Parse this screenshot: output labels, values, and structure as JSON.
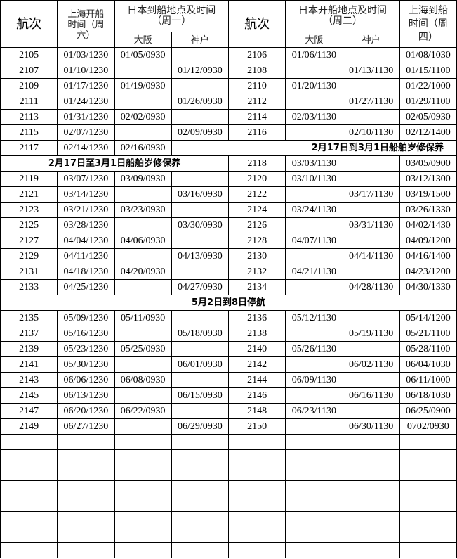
{
  "header": {
    "voyage": "航次",
    "sh_depart": "上海开船时间（周六）",
    "jp_arrive": "日本到船地点及时间（周一）",
    "jp_depart": "日本开船地点及时间（周二）",
    "sh_arrive": "上海到船时间（周四）",
    "osaka": "大阪",
    "kobe": "神户"
  },
  "rows": [
    [
      "2105",
      "01/03/1230",
      "01/05/0930",
      "",
      "2106",
      "01/06/1130",
      "",
      "01/08/1030"
    ],
    [
      "2107",
      "01/10/1230",
      "",
      "01/12/0930",
      "2108",
      "",
      "01/13/1130",
      "01/15/1100"
    ],
    [
      "2109",
      "01/17/1230",
      "01/19/0930",
      "",
      "2110",
      "01/20/1130",
      "",
      "01/22/1000"
    ],
    [
      "2111",
      "01/24/1230",
      "",
      "01/26/0930",
      "2112",
      "",
      "01/27/1130",
      "01/29/1100"
    ],
    [
      "2113",
      "01/31/1230",
      "02/02/0930",
      "",
      "2114",
      "02/03/1130",
      "",
      "02/05/0930"
    ],
    [
      "2115",
      "02/07/1230",
      "",
      "02/09/0930",
      "2116",
      "",
      "02/10/1130",
      "02/12/1400"
    ]
  ],
  "row2117": {
    "cells": [
      "2117",
      "02/14/1230",
      "02/16/0930"
    ],
    "note": "2月17日到3月1日船舶岁修保养"
  },
  "row2118": {
    "note": "2月17日至3月1日船舶岁修保养",
    "cells": [
      "2118",
      "03/03/1130",
      "",
      "03/05/0900"
    ]
  },
  "rows2": [
    [
      "2119",
      "03/07/1230",
      "03/09/0930",
      "",
      "2120",
      "03/10/1130",
      "",
      "03/12/1300"
    ],
    [
      "2121",
      "03/14/1230",
      "",
      "03/16/0930",
      "2122",
      "",
      "03/17/1130",
      "03/19/1500"
    ],
    [
      "2123",
      "03/21/1230",
      "03/23/0930",
      "",
      "2124",
      "03/24/1130",
      "",
      "03/26/1330"
    ],
    [
      "2125",
      "03/28/1230",
      "",
      "03/30/0930",
      "2126",
      "",
      "03/31/1130",
      "04/02/1430"
    ],
    [
      "2127",
      "04/04/1230",
      "04/06/0930",
      "",
      "2128",
      "04/07/1130",
      "",
      "04/09/1200"
    ],
    [
      "2129",
      "04/11/1230",
      "",
      "04/13/0930",
      "2130",
      "",
      "04/14/1130",
      "04/16/1400"
    ],
    [
      "2131",
      "04/18/1230",
      "04/20/0930",
      "",
      "2132",
      "04/21/1130",
      "",
      "04/23/1200"
    ],
    [
      "2133",
      "04/25/1230",
      "",
      "04/27/0930",
      "2134",
      "",
      "04/28/1130",
      "04/30/1330"
    ]
  ],
  "suspend_note": "5月2日到8日停航",
  "rows3": [
    [
      "2135",
      "05/09/1230",
      "05/11/0930",
      "",
      "2136",
      "05/12/1130",
      "",
      "05/14/1200"
    ],
    [
      "2137",
      "05/16/1230",
      "",
      "05/18/0930",
      "2138",
      "",
      "05/19/1130",
      "05/21/1100"
    ],
    [
      "2139",
      "05/23/1230",
      "05/25/0930",
      "",
      "2140",
      "05/26/1130",
      "",
      "05/28/1100"
    ],
    [
      "2141",
      "05/30/1230",
      "",
      "06/01/0930",
      "2142",
      "",
      "06/02/1130",
      "06/04/1030"
    ],
    [
      "2143",
      "06/06/1230",
      "06/08/0930",
      "",
      "2144",
      "06/09/1130",
      "",
      "06/11/1000"
    ],
    [
      "2145",
      "06/13/1230",
      "",
      "06/15/0930",
      "2146",
      "",
      "06/16/1130",
      "06/18/1030"
    ],
    [
      "2147",
      "06/20/1230",
      "06/22/0930",
      "",
      "2148",
      "06/23/1130",
      "",
      "06/25/0900"
    ],
    [
      "2149",
      "06/27/1230",
      "",
      "06/29/0930",
      "2150",
      "",
      "06/30/1130",
      "0702/0930"
    ]
  ]
}
